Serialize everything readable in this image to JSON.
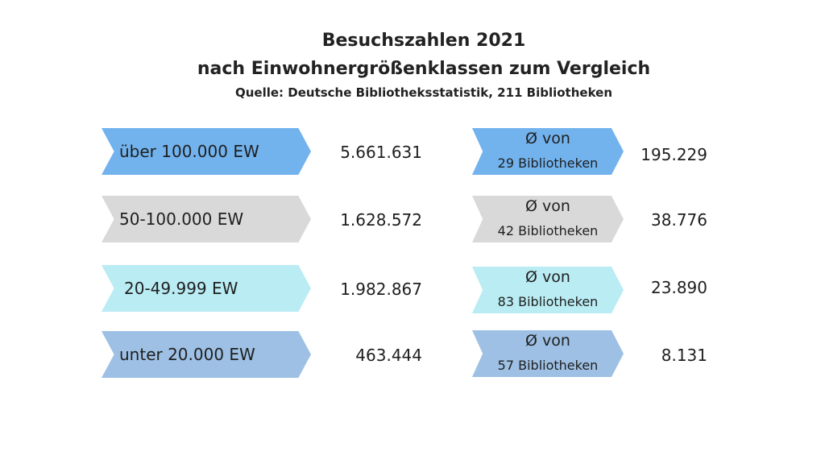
{
  "header": {
    "title_line1": "Besuchszahlen 2021",
    "title_line2": "nach Einwohnergrößenklassen zum Vergleich",
    "source": "Quelle: Deutsche Bibliotheksstatistik, 211 Bibliotheken"
  },
  "rows": [
    {
      "class_label": "über 100.000 EW",
      "total": "5.661.631",
      "avg_line1": "Ø von",
      "avg_line2": "29 Bibliotheken",
      "avg_value": "195.229",
      "color": "#72b3ee"
    },
    {
      "class_label": "50-100.000 EW",
      "total": "1.628.572",
      "avg_line1": "Ø von",
      "avg_line2": "42 Bibliotheken",
      "avg_value": "38.776",
      "color": "#d9d9d9"
    },
    {
      "class_label": "20-49.999 EW",
      "total": "1.982.867",
      "avg_line1": "Ø von",
      "avg_line2": "83 Bibliotheken",
      "avg_value": "23.890",
      "color": "#b9ecf3"
    },
    {
      "class_label": "unter 20.000 EW",
      "total": "463.444",
      "avg_line1": "Ø von",
      "avg_line2": "57 Bibliotheken",
      "avg_value": "8.131",
      "color": "#9dc0e4"
    }
  ]
}
